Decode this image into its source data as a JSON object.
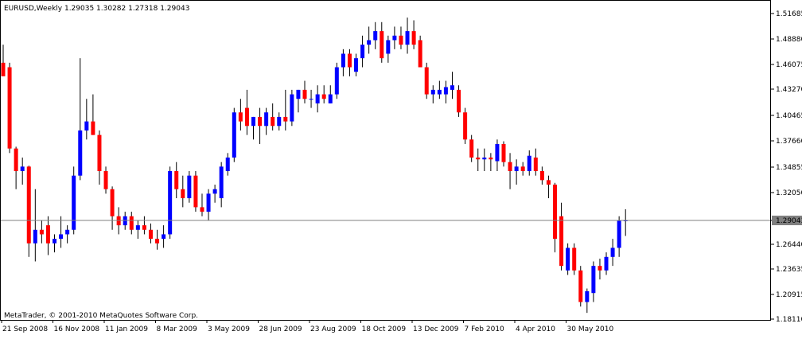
{
  "chart_data": {
    "type": "candlestick",
    "symbol_header": "EURUSD,Weekly  1.29035 1.30282 1.27318 1.29043",
    "watermark": "MetaTrader, © 2001-2010 MetaQuotes Software Corp.",
    "current_price": "1.29043",
    "ylim": [
      1.1811,
      1.51685
    ],
    "y_ticks": [
      "1.51685",
      "1.48880",
      "1.46075",
      "1.43270",
      "1.40465",
      "1.37660",
      "1.34855",
      "1.32050",
      "1.29043",
      "1.26440",
      "1.23635",
      "1.20915",
      "1.18110"
    ],
    "x_ticks": [
      "21 Sep 2008",
      "16 Nov 2008",
      "11 Jan 2009",
      "8 Mar 2009",
      "3 May 2009",
      "28 Jun 2009",
      "23 Aug 2009",
      "18 Oct 2009",
      "13 Dec 2009",
      "7 Feb 2010",
      "4 Apr 2010",
      "30 May 2010"
    ],
    "colors": {
      "bull": "#0000ff",
      "bear": "#ff0000",
      "wick": "#000000",
      "grid_line": "#808080",
      "background": "#ffffff"
    },
    "candles": [
      {
        "o": 1.465,
        "h": 1.485,
        "l": 1.452,
        "c": 1.45
      },
      {
        "o": 1.46,
        "h": 1.465,
        "l": 1.365,
        "c": 1.37
      },
      {
        "o": 1.37,
        "h": 1.372,
        "l": 1.325,
        "c": 1.345
      },
      {
        "o": 1.345,
        "h": 1.36,
        "l": 1.33,
        "c": 1.35
      },
      {
        "o": 1.35,
        "h": 1.351,
        "l": 1.25,
        "c": 1.265
      },
      {
        "o": 1.265,
        "h": 1.325,
        "l": 1.245,
        "c": 1.28
      },
      {
        "o": 1.28,
        "h": 1.29,
        "l": 1.265,
        "c": 1.275
      },
      {
        "o": 1.285,
        "h": 1.295,
        "l": 1.252,
        "c": 1.265
      },
      {
        "o": 1.265,
        "h": 1.275,
        "l": 1.255,
        "c": 1.27
      },
      {
        "o": 1.27,
        "h": 1.295,
        "l": 1.26,
        "c": 1.275
      },
      {
        "o": 1.275,
        "h": 1.285,
        "l": 1.265,
        "c": 1.28
      },
      {
        "o": 1.28,
        "h": 1.35,
        "l": 1.275,
        "c": 1.34
      },
      {
        "o": 1.34,
        "h": 1.47,
        "l": 1.335,
        "c": 1.39
      },
      {
        "o": 1.39,
        "h": 1.425,
        "l": 1.38,
        "c": 1.4
      },
      {
        "o": 1.4,
        "h": 1.43,
        "l": 1.385,
        "c": 1.385
      },
      {
        "o": 1.385,
        "h": 1.39,
        "l": 1.33,
        "c": 1.345
      },
      {
        "o": 1.345,
        "h": 1.35,
        "l": 1.32,
        "c": 1.325
      },
      {
        "o": 1.325,
        "h": 1.328,
        "l": 1.28,
        "c": 1.295
      },
      {
        "o": 1.295,
        "h": 1.305,
        "l": 1.275,
        "c": 1.285
      },
      {
        "o": 1.285,
        "h": 1.3,
        "l": 1.28,
        "c": 1.295
      },
      {
        "o": 1.295,
        "h": 1.3,
        "l": 1.275,
        "c": 1.28
      },
      {
        "o": 1.28,
        "h": 1.29,
        "l": 1.27,
        "c": 1.285
      },
      {
        "o": 1.285,
        "h": 1.295,
        "l": 1.275,
        "c": 1.28
      },
      {
        "o": 1.28,
        "h": 1.287,
        "l": 1.265,
        "c": 1.27
      },
      {
        "o": 1.27,
        "h": 1.28,
        "l": 1.258,
        "c": 1.265
      },
      {
        "o": 1.27,
        "h": 1.285,
        "l": 1.26,
        "c": 1.275
      },
      {
        "o": 1.275,
        "h": 1.35,
        "l": 1.27,
        "c": 1.345
      },
      {
        "o": 1.345,
        "h": 1.355,
        "l": 1.315,
        "c": 1.325
      },
      {
        "o": 1.325,
        "h": 1.34,
        "l": 1.305,
        "c": 1.315
      },
      {
        "o": 1.315,
        "h": 1.345,
        "l": 1.31,
        "c": 1.34
      },
      {
        "o": 1.34,
        "h": 1.345,
        "l": 1.3,
        "c": 1.305
      },
      {
        "o": 1.305,
        "h": 1.32,
        "l": 1.295,
        "c": 1.3
      },
      {
        "o": 1.3,
        "h": 1.325,
        "l": 1.29,
        "c": 1.32
      },
      {
        "o": 1.32,
        "h": 1.33,
        "l": 1.31,
        "c": 1.325
      },
      {
        "o": 1.315,
        "h": 1.355,
        "l": 1.305,
        "c": 1.35
      },
      {
        "o": 1.345,
        "h": 1.365,
        "l": 1.34,
        "c": 1.36
      },
      {
        "o": 1.36,
        "h": 1.415,
        "l": 1.355,
        "c": 1.41
      },
      {
        "o": 1.41,
        "h": 1.425,
        "l": 1.39,
        "c": 1.4
      },
      {
        "o": 1.415,
        "h": 1.435,
        "l": 1.385,
        "c": 1.395
      },
      {
        "o": 1.395,
        "h": 1.405,
        "l": 1.38,
        "c": 1.405
      },
      {
        "o": 1.405,
        "h": 1.415,
        "l": 1.375,
        "c": 1.395
      },
      {
        "o": 1.395,
        "h": 1.415,
        "l": 1.385,
        "c": 1.41
      },
      {
        "o": 1.405,
        "h": 1.42,
        "l": 1.39,
        "c": 1.395
      },
      {
        "o": 1.395,
        "h": 1.41,
        "l": 1.39,
        "c": 1.405
      },
      {
        "o": 1.405,
        "h": 1.435,
        "l": 1.39,
        "c": 1.4
      },
      {
        "o": 1.4,
        "h": 1.435,
        "l": 1.395,
        "c": 1.43
      },
      {
        "o": 1.425,
        "h": 1.435,
        "l": 1.41,
        "c": 1.435
      },
      {
        "o": 1.435,
        "h": 1.445,
        "l": 1.42,
        "c": 1.425
      },
      {
        "o": 1.425,
        "h": 1.435,
        "l": 1.415,
        "c": 1.425
      },
      {
        "o": 1.42,
        "h": 1.44,
        "l": 1.41,
        "c": 1.43
      },
      {
        "o": 1.43,
        "h": 1.44,
        "l": 1.42,
        "c": 1.425
      },
      {
        "o": 1.42,
        "h": 1.44,
        "l": 1.42,
        "c": 1.43
      },
      {
        "o": 1.43,
        "h": 1.465,
        "l": 1.425,
        "c": 1.46
      },
      {
        "o": 1.46,
        "h": 1.48,
        "l": 1.45,
        "c": 1.475
      },
      {
        "o": 1.475,
        "h": 1.48,
        "l": 1.45,
        "c": 1.46
      },
      {
        "o": 1.455,
        "h": 1.475,
        "l": 1.45,
        "c": 1.47
      },
      {
        "o": 1.47,
        "h": 1.495,
        "l": 1.46,
        "c": 1.485
      },
      {
        "o": 1.485,
        "h": 1.505,
        "l": 1.475,
        "c": 1.49
      },
      {
        "o": 1.49,
        "h": 1.51,
        "l": 1.48,
        "c": 1.5
      },
      {
        "o": 1.5,
        "h": 1.51,
        "l": 1.465,
        "c": 1.47
      },
      {
        "o": 1.475,
        "h": 1.495,
        "l": 1.465,
        "c": 1.49
      },
      {
        "o": 1.49,
        "h": 1.505,
        "l": 1.48,
        "c": 1.495
      },
      {
        "o": 1.495,
        "h": 1.505,
        "l": 1.48,
        "c": 1.485
      },
      {
        "o": 1.485,
        "h": 1.515,
        "l": 1.475,
        "c": 1.5
      },
      {
        "o": 1.5,
        "h": 1.512,
        "l": 1.48,
        "c": 1.485
      },
      {
        "o": 1.49,
        "h": 1.495,
        "l": 1.46,
        "c": 1.46
      },
      {
        "o": 1.46,
        "h": 1.465,
        "l": 1.425,
        "c": 1.43
      },
      {
        "o": 1.43,
        "h": 1.44,
        "l": 1.42,
        "c": 1.435
      },
      {
        "o": 1.43,
        "h": 1.445,
        "l": 1.425,
        "c": 1.435
      },
      {
        "o": 1.43,
        "h": 1.445,
        "l": 1.42,
        "c": 1.438
      },
      {
        "o": 1.435,
        "h": 1.455,
        "l": 1.425,
        "c": 1.44
      },
      {
        "o": 1.435,
        "h": 1.44,
        "l": 1.405,
        "c": 1.41
      },
      {
        "o": 1.41,
        "h": 1.415,
        "l": 1.375,
        "c": 1.38
      },
      {
        "o": 1.38,
        "h": 1.385,
        "l": 1.355,
        "c": 1.36
      },
      {
        "o": 1.36,
        "h": 1.37,
        "l": 1.345,
        "c": 1.358
      },
      {
        "o": 1.358,
        "h": 1.37,
        "l": 1.345,
        "c": 1.36
      },
      {
        "o": 1.36,
        "h": 1.365,
        "l": 1.345,
        "c": 1.358
      },
      {
        "o": 1.356,
        "h": 1.38,
        "l": 1.345,
        "c": 1.375
      },
      {
        "o": 1.375,
        "h": 1.378,
        "l": 1.35,
        "c": 1.355
      },
      {
        "o": 1.355,
        "h": 1.365,
        "l": 1.325,
        "c": 1.345
      },
      {
        "o": 1.345,
        "h": 1.358,
        "l": 1.33,
        "c": 1.35
      },
      {
        "o": 1.35,
        "h": 1.355,
        "l": 1.34,
        "c": 1.345
      },
      {
        "o": 1.345,
        "h": 1.368,
        "l": 1.34,
        "c": 1.362
      },
      {
        "o": 1.36,
        "h": 1.37,
        "l": 1.34,
        "c": 1.345
      },
      {
        "o": 1.345,
        "h": 1.35,
        "l": 1.33,
        "c": 1.335
      },
      {
        "o": 1.335,
        "h": 1.34,
        "l": 1.315,
        "c": 1.33
      },
      {
        "o": 1.33,
        "h": 1.332,
        "l": 1.255,
        "c": 1.27
      },
      {
        "o": 1.295,
        "h": 1.31,
        "l": 1.235,
        "c": 1.24
      },
      {
        "o": 1.235,
        "h": 1.265,
        "l": 1.23,
        "c": 1.26
      },
      {
        "o": 1.26,
        "h": 1.265,
        "l": 1.23,
        "c": 1.235
      },
      {
        "o": 1.235,
        "h": 1.24,
        "l": 1.195,
        "c": 1.2
      },
      {
        "o": 1.2,
        "h": 1.215,
        "l": 1.188,
        "c": 1.212
      },
      {
        "o": 1.21,
        "h": 1.245,
        "l": 1.2,
        "c": 1.24
      },
      {
        "o": 1.24,
        "h": 1.248,
        "l": 1.225,
        "c": 1.235
      },
      {
        "o": 1.235,
        "h": 1.255,
        "l": 1.23,
        "c": 1.25
      },
      {
        "o": 1.25,
        "h": 1.27,
        "l": 1.24,
        "c": 1.26
      },
      {
        "o": 1.26,
        "h": 1.295,
        "l": 1.25,
        "c": 1.29
      },
      {
        "o": 1.2904,
        "h": 1.3028,
        "l": 1.2732,
        "c": 1.2904
      }
    ]
  }
}
